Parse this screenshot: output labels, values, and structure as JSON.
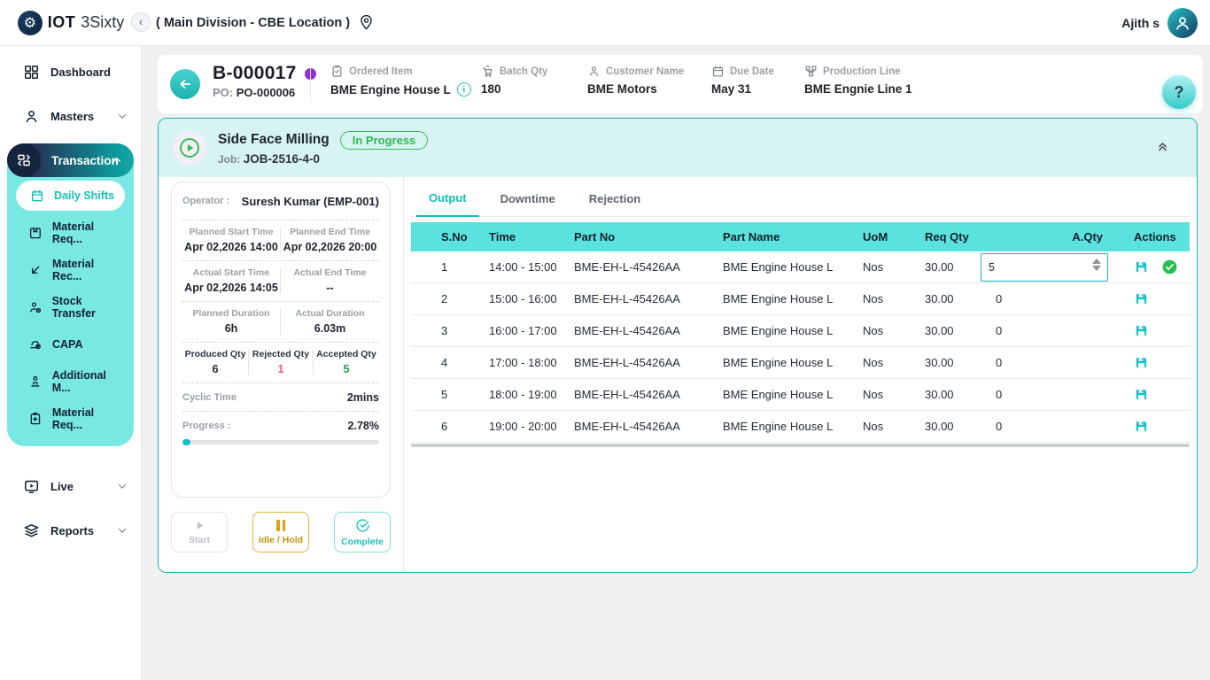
{
  "topbar": {
    "logo_bold": "IOT",
    "logo_light": "3Sixty",
    "breadcrumb": "( Main Division - CBE Location )",
    "user_name": "Ajith s"
  },
  "sidebar": {
    "dashboard": "Dashboard",
    "masters": "Masters",
    "transaction": "Transaction",
    "transaction_items": [
      {
        "label": "Daily Shifts"
      },
      {
        "label": "Material Req..."
      },
      {
        "label": "Material Rec..."
      },
      {
        "label": "Stock Transfer"
      },
      {
        "label": "CAPA"
      },
      {
        "label": "Additional M..."
      },
      {
        "label": "Material Req..."
      }
    ],
    "live": "Live",
    "reports": "Reports"
  },
  "batch_header": {
    "batch_no": "B-000017",
    "po_label": "PO:",
    "po_no": "PO-000006",
    "ordered_item_label": "Ordered Item",
    "ordered_item": "BME Engine House L",
    "info_glyph": "i",
    "batch_qty_label": "Batch Qty",
    "batch_qty": "180",
    "customer_label": "Customer Name",
    "customer": "BME Motors",
    "due_date_label": "Due Date",
    "due_date": "May 31",
    "prod_line_label": "Production Line",
    "prod_line": "BME Engnie Line 1",
    "help": "?"
  },
  "job": {
    "title": "Side Face Milling",
    "status": "In Progress",
    "job_label": "Job:",
    "job_no": "JOB-2516-4-0",
    "operator_label": "Operator :",
    "operator": "Suresh Kumar (EMP-001)",
    "times": [
      {
        "l1": "Planned Start Time",
        "v1": "Apr 02,2026 14:00",
        "l2": "Planned End Time",
        "v2": "Apr 02,2026 20:00"
      },
      {
        "l1": "Actual Start Time",
        "v1": "Apr 02,2026 14:05",
        "l2": "Actual End Time",
        "v2": "--"
      },
      {
        "l1": "Planned Duration",
        "v1": "6h",
        "l2": "Actual Duration",
        "v2": "6.03m"
      }
    ],
    "qty": {
      "produced_label": "Produced Qty",
      "produced": "6",
      "rejected_label": "Rejected Qty",
      "rejected": "1",
      "accepted_label": "Accepted Qty",
      "accepted": "5"
    },
    "cyclic_label": "Cyclic Time",
    "cyclic": "2mins",
    "progress_label": "Progress :",
    "progress": "2.78%",
    "progress_pct": 2.78,
    "buttons": {
      "start": "Start",
      "idle": "Idle / Hold",
      "complete": "Complete"
    }
  },
  "tabs": [
    "Output",
    "Downtime",
    "Rejection"
  ],
  "table": {
    "headers": [
      "S.No",
      "Time",
      "Part No",
      "Part Name",
      "UoM",
      "Req Qty",
      "A.Qty",
      "Actions"
    ],
    "rows": [
      {
        "sno": "1",
        "time": "14:00 - 15:00",
        "part_no": "BME-EH-L-45426AA",
        "part_name": "BME Engine House L",
        "uom": "Nos",
        "req_qty": "30.00",
        "aqty": "5"
      },
      {
        "sno": "2",
        "time": "15:00 - 16:00",
        "part_no": "BME-EH-L-45426AA",
        "part_name": "BME Engine House L",
        "uom": "Nos",
        "req_qty": "30.00",
        "aqty": "0"
      },
      {
        "sno": "3",
        "time": "16:00 - 17:00",
        "part_no": "BME-EH-L-45426AA",
        "part_name": "BME Engine House L",
        "uom": "Nos",
        "req_qty": "30.00",
        "aqty": "0"
      },
      {
        "sno": "4",
        "time": "17:00 - 18:00",
        "part_no": "BME-EH-L-45426AA",
        "part_name": "BME Engine House L",
        "uom": "Nos",
        "req_qty": "30.00",
        "aqty": "0"
      },
      {
        "sno": "5",
        "time": "18:00 - 19:00",
        "part_no": "BME-EH-L-45426AA",
        "part_name": "BME Engine House L",
        "uom": "Nos",
        "req_qty": "30.00",
        "aqty": "0"
      },
      {
        "sno": "6",
        "time": "19:00 - 20:00",
        "part_no": "BME-EH-L-45426AA",
        "part_name": "BME Engine House L",
        "uom": "Nos",
        "req_qty": "30.00",
        "aqty": "0"
      }
    ]
  },
  "colors": {
    "accent_teal": "#14bdbd",
    "table_header": "#5ce2de",
    "submenu_bg": "#79e8e3",
    "card_header_bg": "#d8f3f3",
    "status_green": "#2eb853",
    "rejected_pink": "#f0558a",
    "accepted_green": "#2f9e5f",
    "idle_amber": "#c0940f",
    "purple_dot": "#8b2fd6"
  }
}
